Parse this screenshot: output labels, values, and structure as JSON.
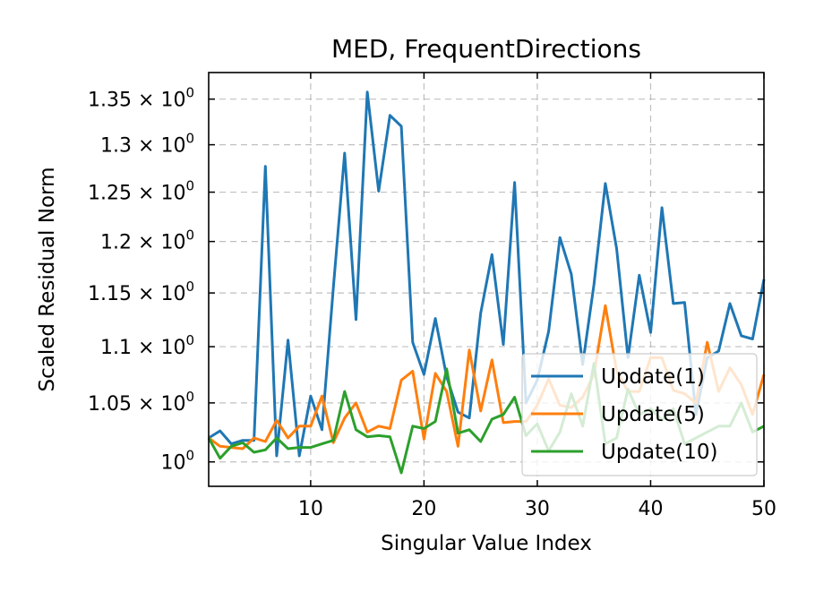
{
  "chart_data": {
    "type": "line",
    "title": "MED, FrequentDirections",
    "xlabel": "Singular Value Index",
    "ylabel": "Scaled Residual Norm",
    "xlim": [
      1,
      50
    ],
    "ylim": [
      0.98,
      1.38
    ],
    "yscale": "log",
    "grid": true,
    "legend_position": "bottom-right",
    "x_ticks": [
      10,
      20,
      30,
      40,
      50
    ],
    "x_tick_labels": [
      "10",
      "20",
      "30",
      "40",
      "50"
    ],
    "y_ticks": [
      1.0,
      1.05,
      1.1,
      1.15,
      1.2,
      1.25,
      1.3,
      1.35
    ],
    "y_tick_labels": {
      "base": [
        "10",
        "1.05 × 10",
        "1.1 × 10",
        "1.15 × 10",
        "1.2 × 10",
        "1.25 × 10",
        "1.3 × 10",
        "1.35 × 10"
      ],
      "exponent": "0"
    },
    "x": [
      1,
      2,
      3,
      4,
      5,
      6,
      7,
      8,
      9,
      10,
      11,
      12,
      13,
      14,
      15,
      16,
      17,
      18,
      19,
      20,
      21,
      22,
      23,
      24,
      25,
      26,
      27,
      28,
      29,
      30,
      31,
      32,
      33,
      34,
      35,
      36,
      37,
      38,
      39,
      40,
      41,
      42,
      43,
      44,
      45,
      46,
      47,
      48,
      49,
      50
    ],
    "series": [
      {
        "name": "Update(1)",
        "color": "#1f77b4",
        "values": [
          1.02,
          1.026,
          1.015,
          1.018,
          1.018,
          1.277,
          1.005,
          1.106,
          1.005,
          1.056,
          1.027,
          1.155,
          1.291,
          1.125,
          1.358,
          1.251,
          1.332,
          1.32,
          1.104,
          1.075,
          1.126,
          1.073,
          1.042,
          1.037,
          1.131,
          1.187,
          1.102,
          1.26,
          1.05,
          1.07,
          1.114,
          1.204,
          1.168,
          1.084,
          1.158,
          1.259,
          1.193,
          1.09,
          1.167,
          1.113,
          1.234,
          1.14,
          1.141,
          1.04,
          1.09,
          1.096,
          1.14,
          1.11,
          1.107,
          1.163
        ]
      },
      {
        "name": "Update(5)",
        "color": "#ff7f0e",
        "values": [
          1.02,
          1.013,
          1.012,
          1.011,
          1.02,
          1.017,
          1.035,
          1.02,
          1.03,
          1.03,
          1.056,
          1.016,
          1.037,
          1.05,
          1.025,
          1.03,
          1.028,
          1.07,
          1.078,
          1.019,
          1.076,
          1.06,
          1.013,
          1.097,
          1.043,
          1.088,
          1.033,
          1.034,
          1.034,
          1.048,
          1.071,
          1.048,
          1.046,
          1.055,
          1.075,
          1.138,
          1.078,
          1.06,
          1.06,
          1.09,
          1.09,
          1.061,
          1.058,
          1.05,
          1.104,
          1.06,
          1.081,
          1.066,
          1.04,
          1.075
        ]
      },
      {
        "name": "Update(10)",
        "color": "#2ca02c",
        "values": [
          1.02,
          1.003,
          1.013,
          1.016,
          1.008,
          1.01,
          1.02,
          1.011,
          1.012,
          1.012,
          1.015,
          1.018,
          1.06,
          1.027,
          1.021,
          1.022,
          1.021,
          0.991,
          1.03,
          1.028,
          1.034,
          1.08,
          1.024,
          1.027,
          1.017,
          1.036,
          1.04,
          1.055,
          1.022,
          1.032,
          1.009,
          1.025,
          1.058,
          1.03,
          1.085,
          1.015,
          1.02,
          1.062,
          1.04,
          1.045,
          1.035,
          1.045,
          1.015,
          1.02,
          1.025,
          1.03,
          1.03,
          1.05,
          1.025,
          1.03
        ]
      }
    ]
  }
}
